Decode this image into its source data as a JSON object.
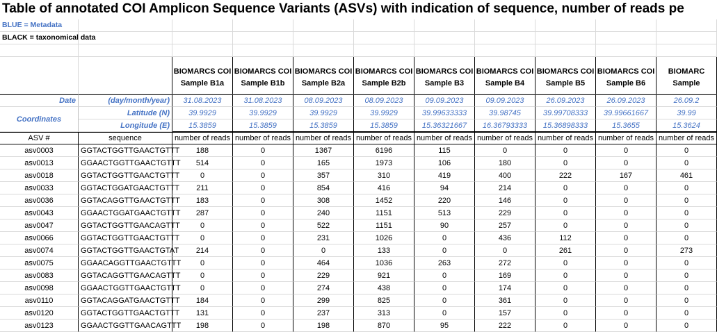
{
  "title": "Table of annotated COI Amplicon Sequence Variants (ASVs) with indication of sequence, number of reads pe",
  "legend": [
    "BLUE = Metadata",
    "BLACK = taxonomical data"
  ],
  "metadata_labels": {
    "date": "Date",
    "date_format": "(day/month/year)",
    "coordinates": "Coordinates",
    "latitude": "Latitude (N)",
    "longitude": "Longitude (E)"
  },
  "columns": {
    "asv": "ASV #",
    "sequence": "sequence",
    "reads": "number of reads"
  },
  "samples": [
    {
      "project": "BIOMARCS COI",
      "name": "Sample B1a",
      "date": "31.08.2023",
      "latitude": 39.9929,
      "longitude": 15.3859
    },
    {
      "project": "BIOMARCS COI",
      "name": "Sample B1b",
      "date": "31.08.2023",
      "latitude": 39.9929,
      "longitude": 15.3859
    },
    {
      "project": "BIOMARCS COI",
      "name": "Sample B2a",
      "date": "08.09.2023",
      "latitude": 39.9929,
      "longitude": 15.3859
    },
    {
      "project": "BIOMARCS COI",
      "name": "Sample B2b",
      "date": "08.09.2023",
      "latitude": 39.9929,
      "longitude": 15.3859
    },
    {
      "project": "BIOMARCS COI",
      "name": "Sample B3",
      "date": "09.09.2023",
      "latitude": 39.99633333,
      "longitude": 15.36321667
    },
    {
      "project": "BIOMARCS COI",
      "name": "Sample B4",
      "date": "09.09.2023",
      "latitude": 39.98745,
      "longitude": 16.36793333
    },
    {
      "project": "BIOMARCS COI",
      "name": "Sample B5",
      "date": "26.09.2023",
      "latitude": 39.99708333,
      "longitude": 15.36898333
    },
    {
      "project": "BIOMARCS COI",
      "name": "Sample B6",
      "date": "26.09.2023",
      "latitude": 39.99661667,
      "longitude": 15.3655
    },
    {
      "project": "BIOMARC",
      "name": "Sample",
      "date": "26.09.2",
      "latitude": "39.99",
      "longitude": "15.3624"
    }
  ],
  "rows": [
    {
      "asv": "asv0003",
      "sequence": "GGTACTGGTTGAACTGTTT",
      "reads": [
        188,
        0,
        1367,
        6196,
        115,
        0,
        0,
        0,
        0
      ]
    },
    {
      "asv": "asv0013",
      "sequence": "GGAACTGGTTGAACTGTTT",
      "reads": [
        514,
        0,
        165,
        1973,
        106,
        180,
        0,
        0,
        0
      ]
    },
    {
      "asv": "asv0018",
      "sequence": "GGTACTGGTTGAACTGTTT",
      "reads": [
        0,
        0,
        357,
        310,
        419,
        400,
        222,
        167,
        461
      ]
    },
    {
      "asv": "asv0033",
      "sequence": "GGTACTGGATGAACTGTTT",
      "reads": [
        211,
        0,
        854,
        416,
        94,
        214,
        0,
        0,
        0
      ]
    },
    {
      "asv": "asv0036",
      "sequence": "GGTACAGGTTGAACTGTTT",
      "reads": [
        183,
        0,
        308,
        1452,
        220,
        146,
        0,
        0,
        0
      ]
    },
    {
      "asv": "asv0043",
      "sequence": "GGAACTGGATGAACTGTTT",
      "reads": [
        287,
        0,
        240,
        1151,
        513,
        229,
        0,
        0,
        0
      ]
    },
    {
      "asv": "asv0047",
      "sequence": "GGTACTGGTTGAACAGTTT",
      "reads": [
        0,
        0,
        522,
        1151,
        90,
        257,
        0,
        0,
        0
      ]
    },
    {
      "asv": "asv0066",
      "sequence": "GGTACTGGTTGAACTGTTT",
      "reads": [
        0,
        0,
        231,
        1026,
        0,
        436,
        112,
        0,
        0
      ]
    },
    {
      "asv": "asv0074",
      "sequence": "GGTACTGGTTGAACTGTAT",
      "reads": [
        214,
        0,
        0,
        133,
        0,
        0,
        261,
        0,
        273
      ]
    },
    {
      "asv": "asv0075",
      "sequence": "GGAACAGGTTGAACTGTTT",
      "reads": [
        0,
        0,
        464,
        1036,
        263,
        272,
        0,
        0,
        0
      ]
    },
    {
      "asv": "asv0083",
      "sequence": "GGTACAGGTTGAACAGTTT",
      "reads": [
        0,
        0,
        229,
        921,
        0,
        169,
        0,
        0,
        0
      ]
    },
    {
      "asv": "asv0098",
      "sequence": "GGAACTGGTTGAACTGTTT",
      "reads": [
        0,
        0,
        274,
        438,
        0,
        174,
        0,
        0,
        0
      ]
    },
    {
      "asv": "asv0110",
      "sequence": "GGTACAGGATGAACTGTTT",
      "reads": [
        184,
        0,
        299,
        825,
        0,
        361,
        0,
        0,
        0
      ]
    },
    {
      "asv": "asv0120",
      "sequence": "GGTACTGGTTGAACTGTTT",
      "reads": [
        131,
        0,
        237,
        313,
        0,
        157,
        0,
        0,
        0
      ]
    },
    {
      "asv": "asv0123",
      "sequence": "GGAACTGGTTGAACAGTTT",
      "reads": [
        198,
        0,
        198,
        870,
        95,
        222,
        0,
        0,
        0
      ]
    }
  ]
}
